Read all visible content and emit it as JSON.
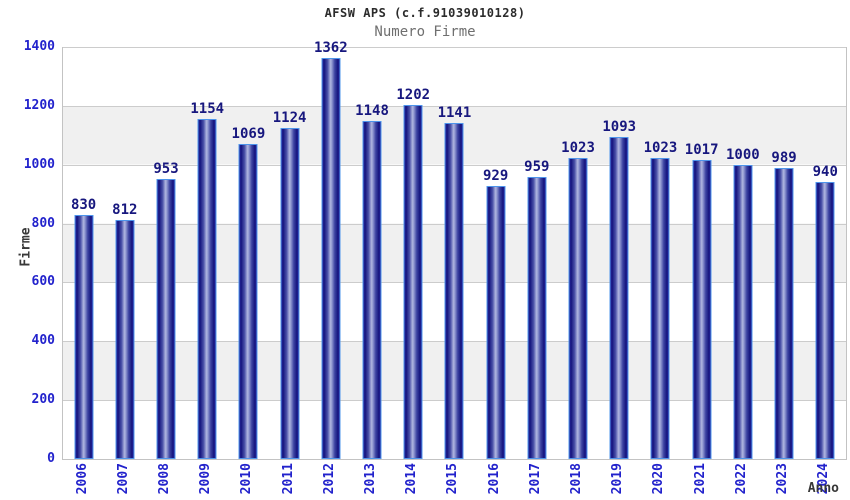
{
  "chart_data": {
    "type": "bar",
    "title": "AFSW APS (c.f.91039010128)",
    "subtitle": "Numero Firme",
    "xlabel": "Anno",
    "ylabel": "Firme",
    "categories": [
      "2006",
      "2007",
      "2008",
      "2009",
      "2010",
      "2011",
      "2012",
      "2013",
      "2014",
      "2015",
      "2016",
      "2017",
      "2018",
      "2019",
      "2020",
      "2021",
      "2022",
      "2023",
      "2024"
    ],
    "values": [
      830,
      812,
      953,
      1154,
      1069,
      1124,
      1362,
      1148,
      1202,
      1141,
      929,
      959,
      1023,
      1093,
      1023,
      1017,
      1000,
      989,
      940
    ],
    "ylim": [
      0,
      1400
    ],
    "yticks": [
      0,
      200,
      400,
      600,
      800,
      1000,
      1200,
      1400
    ],
    "grid": "horizontal-lines-with-alternating-bands",
    "legend": "none"
  },
  "colors": {
    "background": "#ffffff",
    "tick_label": "#2222cc",
    "value_label": "#17177e",
    "bar_border": "#4d94eb",
    "bar_dark": "#16167f",
    "bar_light": "#b0b6e0",
    "band": "#f0f0f0",
    "gridline": "#cccccc",
    "title": "#2b2b2b",
    "subtitle": "#6f6f6f",
    "axis_title": "#383838"
  }
}
